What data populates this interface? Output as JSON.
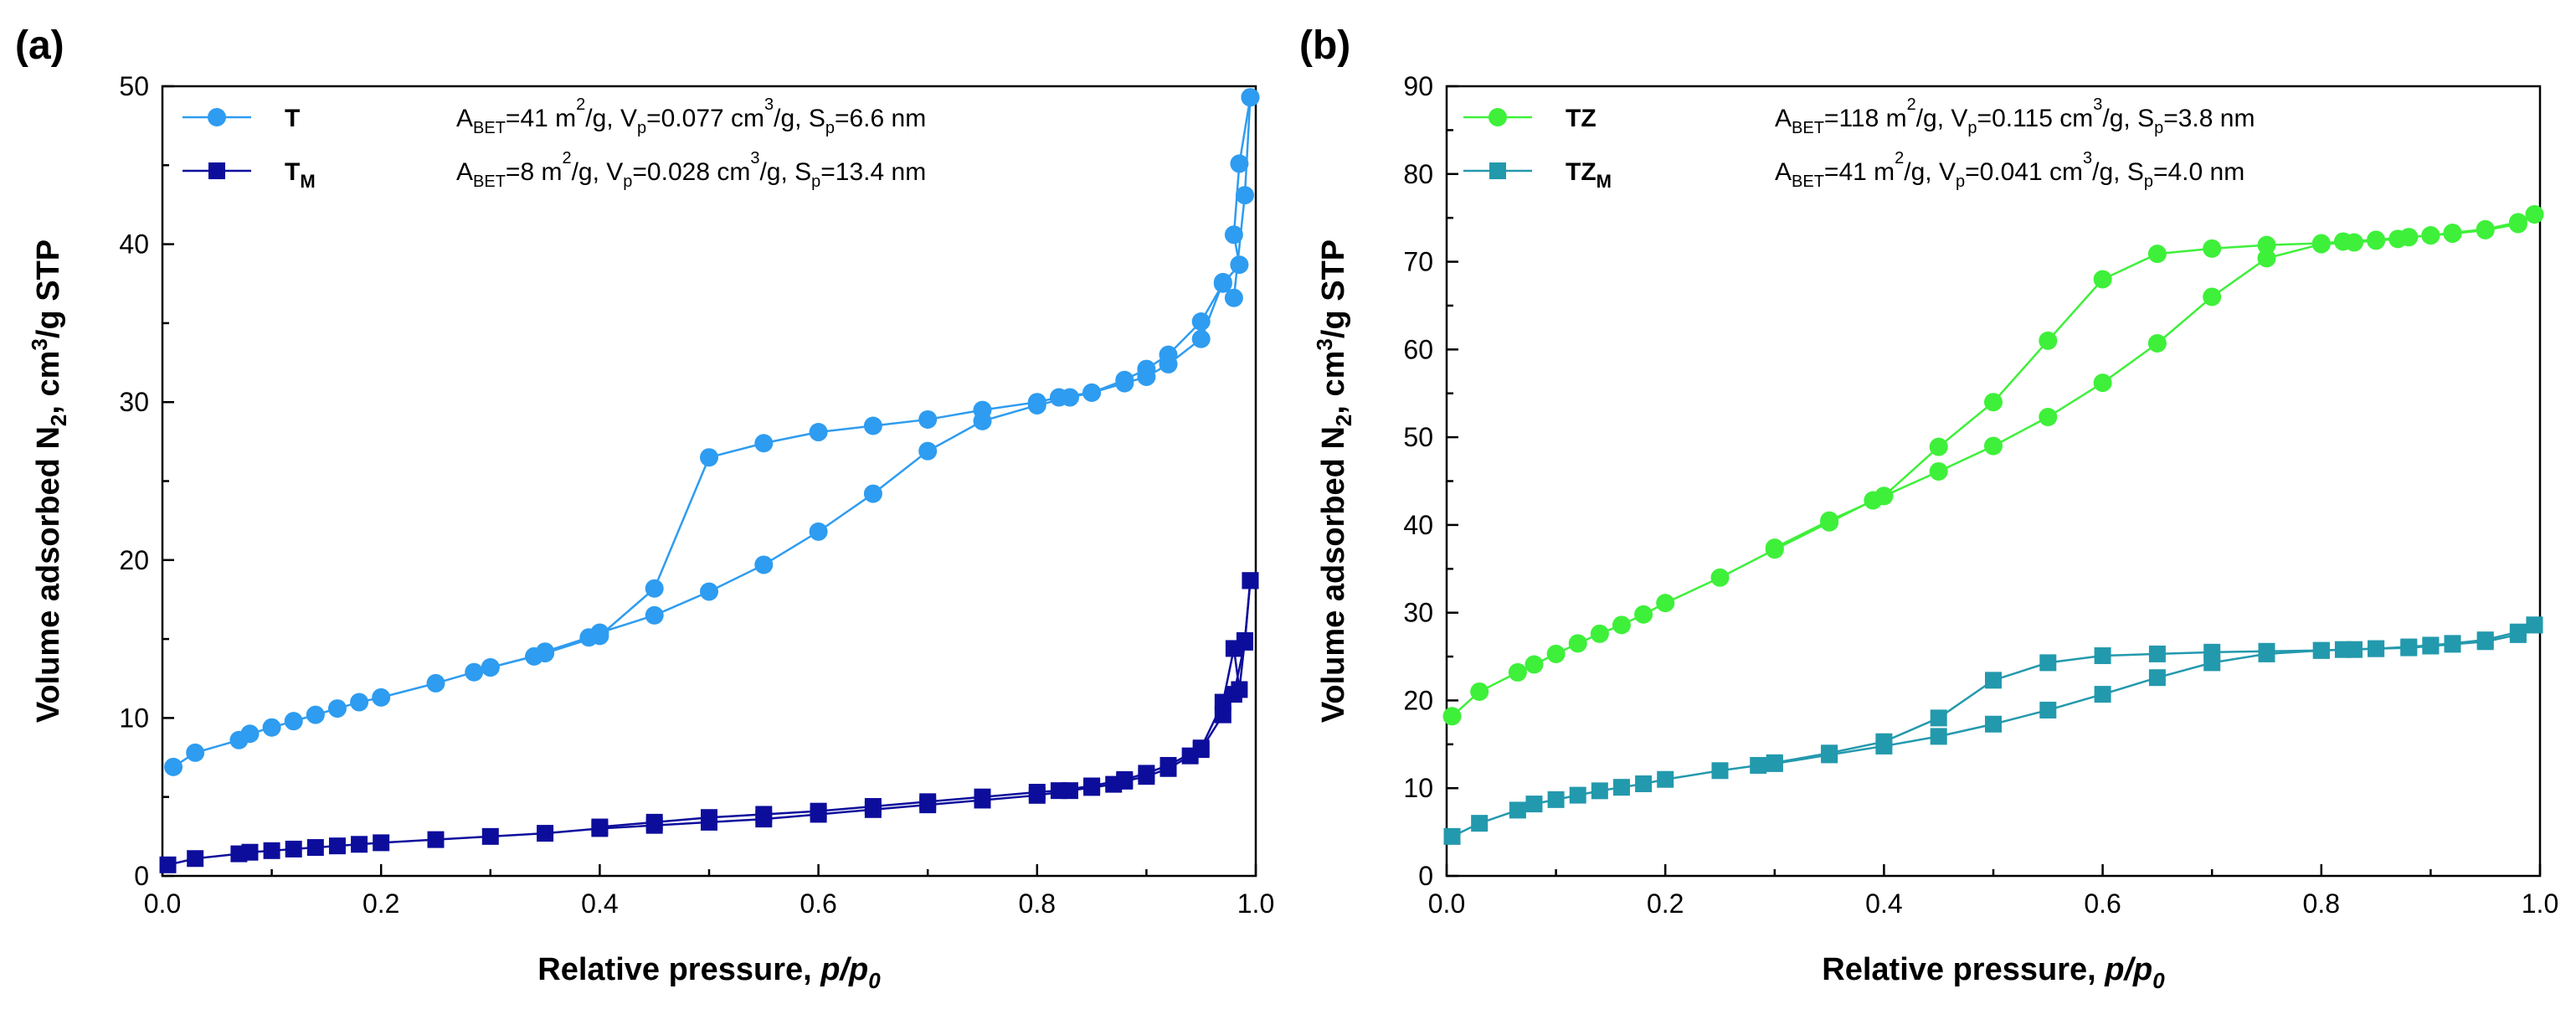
{
  "chart_data": [
    {
      "type": "scatter",
      "panel_label": "(a)",
      "xlabel": "Relative pressure, p/p0",
      "xlabel_main": "Relative pressure, ",
      "xlabel_italic": "p/p",
      "xlabel_sub": "0",
      "ylabel": "Volume adsorbed N2, cm3/g STP",
      "ylabel_parts": [
        "Volume adsorbed N",
        "2",
        ", cm",
        "3",
        "/g STP"
      ],
      "xlim": [
        0.0,
        1.0
      ],
      "ylim": [
        0,
        50
      ],
      "xticks": [
        "0.0",
        "0.2",
        "0.4",
        "0.6",
        "0.8",
        "1.0"
      ],
      "yticks": [
        "0",
        "10",
        "20",
        "30",
        "40",
        "50"
      ],
      "legend_position": "top-left",
      "series": [
        {
          "name": "T",
          "name_sub": "",
          "marker": "circle",
          "color": "#2e9cf0",
          "stats_text": "ABET=41 m2/g, Vp=0.077 cm3/g, Sp=6.6 nm",
          "stats": {
            "A_BET": "41",
            "V_p": "0.077",
            "S_p": "6.6"
          },
          "adsorption": [
            [
              0.01,
              6.9
            ],
            [
              0.03,
              7.8
            ],
            [
              0.07,
              8.6
            ],
            [
              0.08,
              9.0
            ],
            [
              0.1,
              9.4
            ],
            [
              0.12,
              9.8
            ],
            [
              0.14,
              10.2
            ],
            [
              0.16,
              10.6
            ],
            [
              0.18,
              11.0
            ],
            [
              0.2,
              11.3
            ],
            [
              0.25,
              12.2
            ],
            [
              0.285,
              12.9
            ],
            [
              0.3,
              13.2
            ],
            [
              0.34,
              13.9
            ],
            [
              0.35,
              14.2
            ],
            [
              0.39,
              15.1
            ],
            [
              0.4,
              15.4
            ],
            [
              0.45,
              16.5
            ],
            [
              0.5,
              18.0
            ],
            [
              0.55,
              19.7
            ],
            [
              0.6,
              21.8
            ],
            [
              0.65,
              24.2
            ],
            [
              0.7,
              26.9
            ],
            [
              0.75,
              28.8
            ],
            [
              0.8,
              29.8
            ],
            [
              0.83,
              30.3
            ],
            [
              0.85,
              30.6
            ],
            [
              0.88,
              31.2
            ],
            [
              0.9,
              31.6
            ],
            [
              0.92,
              32.4
            ],
            [
              0.95,
              34.0
            ],
            [
              0.97,
              37.6
            ],
            [
              0.98,
              36.6
            ],
            [
              0.99,
              43.1
            ],
            [
              0.995,
              49.3
            ]
          ],
          "desorption": [
            [
              0.995,
              49.3
            ],
            [
              0.985,
              45.1
            ],
            [
              0.98,
              40.6
            ],
            [
              0.985,
              38.7
            ],
            [
              0.97,
              37.5
            ],
            [
              0.95,
              35.1
            ],
            [
              0.92,
              33.0
            ],
            [
              0.9,
              32.1
            ],
            [
              0.88,
              31.4
            ],
            [
              0.85,
              30.6
            ],
            [
              0.82,
              30.3
            ],
            [
              0.8,
              30.0
            ],
            [
              0.75,
              29.5
            ],
            [
              0.7,
              28.9
            ],
            [
              0.65,
              28.5
            ],
            [
              0.6,
              28.1
            ],
            [
              0.55,
              27.4
            ],
            [
              0.5,
              26.5
            ],
            [
              0.45,
              18.2
            ],
            [
              0.4,
              15.2
            ],
            [
              0.35,
              14.1
            ],
            [
              0.3,
              13.2
            ]
          ]
        },
        {
          "name": "T",
          "name_sub": "M",
          "marker": "square",
          "color": "#0d0d9c",
          "stats_text": "ABET=8 m2/g, Vp=0.028 cm3/g, Sp=13.4 nm",
          "stats": {
            "A_BET": "8",
            "V_p": "0.028",
            "S_p": "13.4"
          },
          "adsorption": [
            [
              0.005,
              0.7
            ],
            [
              0.03,
              1.1
            ],
            [
              0.07,
              1.4
            ],
            [
              0.08,
              1.5
            ],
            [
              0.1,
              1.6
            ],
            [
              0.12,
              1.7
            ],
            [
              0.14,
              1.8
            ],
            [
              0.16,
              1.9
            ],
            [
              0.18,
              2.0
            ],
            [
              0.2,
              2.1
            ],
            [
              0.25,
              2.3
            ],
            [
              0.3,
              2.5
            ],
            [
              0.35,
              2.7
            ],
            [
              0.4,
              3.0
            ],
            [
              0.45,
              3.2
            ],
            [
              0.5,
              3.4
            ],
            [
              0.55,
              3.6
            ],
            [
              0.6,
              3.9
            ],
            [
              0.65,
              4.2
            ],
            [
              0.7,
              4.5
            ],
            [
              0.75,
              4.8
            ],
            [
              0.8,
              5.1
            ],
            [
              0.83,
              5.4
            ],
            [
              0.85,
              5.6
            ],
            [
              0.87,
              5.8
            ],
            [
              0.88,
              6.0
            ],
            [
              0.9,
              6.3
            ],
            [
              0.92,
              6.8
            ],
            [
              0.94,
              7.6
            ],
            [
              0.95,
              8.0
            ],
            [
              0.97,
              10.2
            ],
            [
              0.98,
              11.5
            ],
            [
              0.99,
              14.8
            ],
            [
              0.995,
              18.7
            ]
          ],
          "desorption": [
            [
              0.995,
              18.7
            ],
            [
              0.99,
              14.9
            ],
            [
              0.985,
              11.8
            ],
            [
              0.98,
              14.4
            ],
            [
              0.97,
              11.0
            ],
            [
              0.95,
              8.1
            ],
            [
              0.92,
              7.0
            ],
            [
              0.9,
              6.5
            ],
            [
              0.88,
              6.1
            ],
            [
              0.85,
              5.7
            ],
            [
              0.82,
              5.4
            ],
            [
              0.8,
              5.3
            ],
            [
              0.75,
              5.0
            ],
            [
              0.7,
              4.7
            ],
            [
              0.65,
              4.4
            ],
            [
              0.6,
              4.1
            ],
            [
              0.55,
              3.9
            ],
            [
              0.5,
              3.7
            ],
            [
              0.45,
              3.4
            ],
            [
              0.4,
              3.1
            ]
          ]
        }
      ]
    },
    {
      "type": "scatter",
      "panel_label": "(b)",
      "xlabel": "Relative pressure, p/p0",
      "xlabel_main": "Relative pressure, ",
      "xlabel_italic": "p/p",
      "xlabel_sub": "0",
      "ylabel": "Volume adsorbed N2, cm3/g STP",
      "ylabel_parts": [
        "Volume adsorbed N",
        "2",
        ", cm",
        "3",
        "/g STP"
      ],
      "xlim": [
        0.0,
        1.0
      ],
      "ylim": [
        0,
        90
      ],
      "xticks": [
        "0.0",
        "0.2",
        "0.4",
        "0.6",
        "0.8",
        "1.0"
      ],
      "yticks": [
        "0",
        "10",
        "20",
        "30",
        "40",
        "50",
        "60",
        "70",
        "80",
        "90"
      ],
      "legend_position": "top-left",
      "series": [
        {
          "name": "TZ",
          "name_sub": "",
          "marker": "circle",
          "color": "#3ef03a",
          "stats_text": "ABET=118 m2/g, Vp=0.115 cm3/g, Sp=3.8 nm",
          "stats": {
            "A_BET": "118",
            "V_p": "0.115",
            "S_p": "3.8"
          },
          "adsorption": [
            [
              0.005,
              18.2
            ],
            [
              0.03,
              21.0
            ],
            [
              0.065,
              23.2
            ],
            [
              0.08,
              24.1
            ],
            [
              0.1,
              25.3
            ],
            [
              0.12,
              26.5
            ],
            [
              0.14,
              27.6
            ],
            [
              0.16,
              28.6
            ],
            [
              0.18,
              29.8
            ],
            [
              0.2,
              31.1
            ],
            [
              0.25,
              34.0
            ],
            [
              0.3,
              37.2
            ],
            [
              0.35,
              40.3
            ],
            [
              0.39,
              42.8
            ],
            [
              0.4,
              43.3
            ],
            [
              0.45,
              46.1
            ],
            [
              0.5,
              49.0
            ],
            [
              0.55,
              52.3
            ],
            [
              0.6,
              56.2
            ],
            [
              0.65,
              60.7
            ],
            [
              0.7,
              66.0
            ],
            [
              0.75,
              70.4
            ],
            [
              0.8,
              72.0
            ],
            [
              0.83,
              72.2
            ],
            [
              0.85,
              72.4
            ],
            [
              0.87,
              72.6
            ],
            [
              0.88,
              72.8
            ],
            [
              0.9,
              73.0
            ],
            [
              0.92,
              73.2
            ],
            [
              0.95,
              73.6
            ],
            [
              0.98,
              74.3
            ],
            [
              0.995,
              75.4
            ]
          ],
          "desorption": [
            [
              0.995,
              75.4
            ],
            [
              0.98,
              74.5
            ],
            [
              0.95,
              73.7
            ],
            [
              0.92,
              73.3
            ],
            [
              0.9,
              73.0
            ],
            [
              0.88,
              72.8
            ],
            [
              0.85,
              72.5
            ],
            [
              0.82,
              72.3
            ],
            [
              0.8,
              72.1
            ],
            [
              0.75,
              71.9
            ],
            [
              0.7,
              71.5
            ],
            [
              0.65,
              70.9
            ],
            [
              0.6,
              68.0
            ],
            [
              0.55,
              61.0
            ],
            [
              0.5,
              54.0
            ],
            [
              0.45,
              48.9
            ],
            [
              0.4,
              43.3
            ],
            [
              0.35,
              40.5
            ],
            [
              0.3,
              37.4
            ]
          ]
        },
        {
          "name": "TZ",
          "name_sub": "M",
          "marker": "square",
          "color": "#2399ad",
          "stats_text": "ABET=41 m2/g, Vp=0.041 cm3/g, Sp=4.0 nm",
          "stats": {
            "A_BET": "41",
            "V_p": "0.041",
            "S_p": "4.0"
          },
          "adsorption": [
            [
              0.005,
              4.5
            ],
            [
              0.03,
              6.0
            ],
            [
              0.065,
              7.5
            ],
            [
              0.08,
              8.2
            ],
            [
              0.1,
              8.7
            ],
            [
              0.12,
              9.2
            ],
            [
              0.14,
              9.7
            ],
            [
              0.16,
              10.1
            ],
            [
              0.18,
              10.5
            ],
            [
              0.2,
              11.0
            ],
            [
              0.25,
              12.0
            ],
            [
              0.285,
              12.6
            ],
            [
              0.3,
              12.8
            ],
            [
              0.35,
              13.8
            ],
            [
              0.4,
              14.8
            ],
            [
              0.45,
              15.9
            ],
            [
              0.5,
              17.3
            ],
            [
              0.55,
              18.9
            ],
            [
              0.6,
              20.7
            ],
            [
              0.65,
              22.6
            ],
            [
              0.7,
              24.3
            ],
            [
              0.75,
              25.3
            ],
            [
              0.8,
              25.7
            ],
            [
              0.83,
              25.8
            ],
            [
              0.85,
              25.9
            ],
            [
              0.88,
              26.0
            ],
            [
              0.9,
              26.2
            ],
            [
              0.92,
              26.4
            ],
            [
              0.95,
              26.7
            ],
            [
              0.98,
              27.5
            ],
            [
              0.995,
              28.6
            ]
          ],
          "desorption": [
            [
              0.995,
              28.6
            ],
            [
              0.98,
              27.8
            ],
            [
              0.95,
              26.9
            ],
            [
              0.92,
              26.5
            ],
            [
              0.9,
              26.3
            ],
            [
              0.88,
              26.1
            ],
            [
              0.85,
              25.9
            ],
            [
              0.82,
              25.8
            ],
            [
              0.8,
              25.7
            ],
            [
              0.75,
              25.6
            ],
            [
              0.7,
              25.5
            ],
            [
              0.65,
              25.3
            ],
            [
              0.6,
              25.1
            ],
            [
              0.55,
              24.3
            ],
            [
              0.5,
              22.3
            ],
            [
              0.45,
              18.0
            ],
            [
              0.4,
              15.3
            ],
            [
              0.35,
              14.0
            ],
            [
              0.3,
              12.9
            ]
          ]
        }
      ]
    }
  ]
}
